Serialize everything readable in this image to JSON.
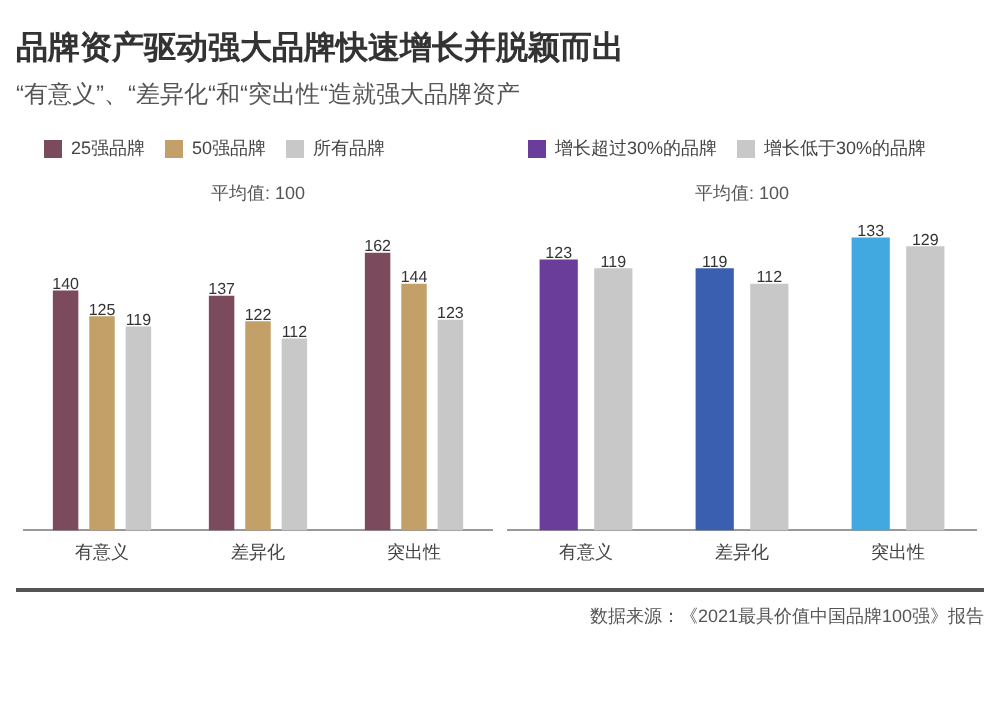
{
  "chart_data": [
    {
      "type": "bar",
      "title": "品牌资产驱动强大品牌快速增长并脱颖而出",
      "subtitle": "“有意义”、“差异化“和“突出性“造就强大品牌资产",
      "categories": [
        "有意义",
        "差异化",
        "突出性"
      ],
      "series": [
        {
          "name": "25强品牌",
          "color": "#7b4a5c",
          "values": [
            140,
            137,
            162
          ]
        },
        {
          "name": "50强品牌",
          "color": "#c4a069",
          "values": [
            125,
            122,
            144
          ]
        },
        {
          "name": "所有品牌",
          "color": "#c8c8c8",
          "values": [
            119,
            112,
            123
          ]
        }
      ],
      "data_labels": true,
      "legend": "top left",
      "grid": false,
      "annotations": [
        "平均值: 100"
      ]
    },
    {
      "type": "bar",
      "categories": [
        "有意义",
        "差异化",
        "突出性"
      ],
      "series": [
        {
          "name": "增长超过30%的品牌",
          "color": "#6a3d9a",
          "colors": [
            "#6a3d9a",
            "#3a5fb0",
            "#42a8e0"
          ],
          "values": [
            123,
            119,
            133
          ]
        },
        {
          "name": "增长低于30%的品牌",
          "color": "#c8c8c8",
          "values": [
            119,
            112,
            129
          ]
        }
      ],
      "data_labels": true,
      "legend": "top left",
      "grid": false,
      "annotations": [
        "平均值: 100",
        "数据来源：《2021最具价值中国品牌100强》报告"
      ]
    }
  ]
}
